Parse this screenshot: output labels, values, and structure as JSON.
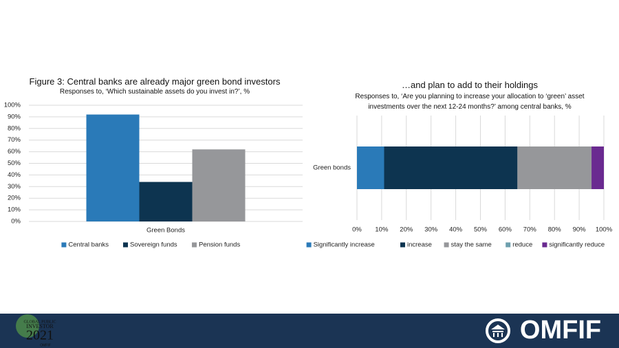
{
  "chart_data": [
    {
      "type": "bar",
      "title": "Figure 3: Central banks are already major green bond investors",
      "subtitle": "Responses to, ‘Which sustainable assets do you invest in?’, %",
      "categories": [
        "Green Bonds"
      ],
      "series": [
        {
          "name": "Central banks",
          "color": "#2a7ab8",
          "values": [
            92
          ]
        },
        {
          "name": "Sovereign funds",
          "color": "#0d3450",
          "values": [
            34
          ]
        },
        {
          "name": "Pension funds",
          "color": "#96979a",
          "values": [
            62
          ]
        }
      ],
      "ylim": [
        0,
        100
      ],
      "yticks": [
        {
          "value": 0,
          "label": "0%"
        },
        {
          "value": 10,
          "label": "10%"
        },
        {
          "value": 20,
          "label": "20%"
        },
        {
          "value": 30,
          "label": "30%"
        },
        {
          "value": 40,
          "label": "40%"
        },
        {
          "value": 50,
          "label": "50%"
        },
        {
          "value": 60,
          "label": "60%"
        },
        {
          "value": 70,
          "label": "70%"
        },
        {
          "value": 80,
          "label": "80%"
        },
        {
          "value": 90,
          "label": "90%"
        },
        {
          "value": 100,
          "label": "100%"
        }
      ],
      "grid": true,
      "legend": "bottom"
    },
    {
      "type": "stacked-bar-horizontal",
      "title": "…and plan to add to their holdings",
      "subtitle": "Responses to, ‘Are you planning to increase your allocation to ‘green’ asset investments over the next 12-24 months?’ among central banks, %",
      "categories": [
        "Green bonds"
      ],
      "series": [
        {
          "name": "Significantly increase",
          "color": "#2a7ab8",
          "values": [
            11
          ]
        },
        {
          "name": "increase",
          "color": "#0d3450",
          "values": [
            54
          ]
        },
        {
          "name": "stay the same",
          "color": "#96979a",
          "values": [
            30
          ]
        },
        {
          "name": "reduce",
          "color": "#6d9fae",
          "values": [
            0
          ]
        },
        {
          "name": "significantly reduce",
          "color": "#6a2a90",
          "values": [
            5
          ]
        }
      ],
      "xlim": [
        0,
        100
      ],
      "xticks": [
        {
          "value": 0,
          "label": "0%"
        },
        {
          "value": 10,
          "label": "10%"
        },
        {
          "value": 20,
          "label": "20%"
        },
        {
          "value": 30,
          "label": "30%"
        },
        {
          "value": 40,
          "label": "40%"
        },
        {
          "value": 50,
          "label": "50%"
        },
        {
          "value": 60,
          "label": "60%"
        },
        {
          "value": 70,
          "label": "70%"
        },
        {
          "value": 80,
          "label": "80%"
        },
        {
          "value": 90,
          "label": "90%"
        },
        {
          "value": 100,
          "label": "100%"
        }
      ],
      "grid": true,
      "legend": "bottom"
    }
  ],
  "footer": {
    "brand": "OMFIF",
    "event_line1": "GLOBAL PUBLIC",
    "event_line2": "INVESTOR",
    "event_year": "2021",
    "event_org": "OMFIF"
  }
}
